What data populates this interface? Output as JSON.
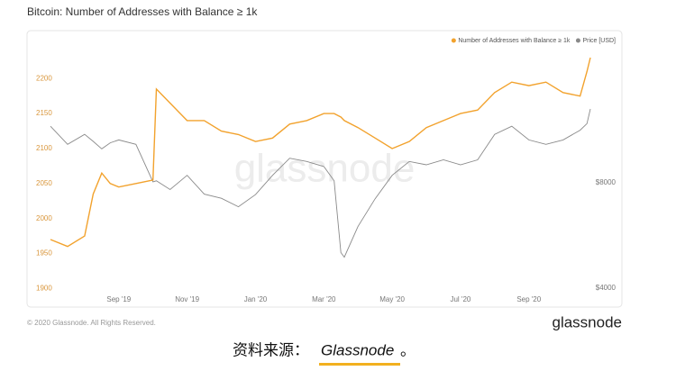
{
  "chart_data": {
    "type": "line",
    "title": "Bitcoin: Number of Addresses with Balance ≥ 1k",
    "watermark": "glassnode",
    "footer": "© 2020 Glassnode. All Rights Reserved.",
    "logo": "glassnode",
    "caption": {
      "prefix": "资料来源：",
      "source": "Glassnode",
      "suffix": "。"
    },
    "legend": "top-right",
    "grid": false,
    "x": [
      6,
      6.5,
      7,
      7.25,
      7.5,
      7.75,
      8,
      8.5,
      9,
      9.1,
      9.5,
      10,
      10.5,
      11,
      11.5,
      12,
      12.5,
      13,
      13.5,
      14,
      14.3,
      14.5,
      14.6,
      15,
      15.5,
      16,
      16.5,
      17,
      17.5,
      18,
      18.5,
      19,
      19.5,
      20,
      20.5,
      21,
      21.5,
      21.7,
      21.8
    ],
    "xlim": [
      6,
      21.8
    ],
    "xticks": [
      {
        "value": 8,
        "label": "Sep '19"
      },
      {
        "value": 10,
        "label": "Nov '19"
      },
      {
        "value": 12,
        "label": "Jan '20"
      },
      {
        "value": 14,
        "label": "Mar '20"
      },
      {
        "value": 16,
        "label": "May '20"
      },
      {
        "value": 18,
        "label": "Jul '20"
      },
      {
        "value": 20,
        "label": "Sep '20"
      }
    ],
    "ylim": [
      1894,
      2248
    ],
    "yticks": [
      1900,
      1950,
      2000,
      2050,
      2100,
      2150,
      2200
    ],
    "y2lim": [
      3880,
      19800
    ],
    "y2log": true,
    "y2ticks": [
      {
        "value": 4000,
        "label": "$4000"
      },
      {
        "value": 8000,
        "label": "$8000"
      }
    ],
    "series": [
      {
        "name": "Number of Addresses with Balance ≥ 1k",
        "color": "#f2a22d",
        "values": [
          1970,
          1960,
          1975,
          2035,
          2065,
          2050,
          2045,
          2050,
          2055,
          2185,
          2165,
          2140,
          2140,
          2125,
          2120,
          2110,
          2115,
          2135,
          2140,
          2150,
          2150,
          2145,
          2140,
          2130,
          2115,
          2100,
          2110,
          2130,
          2140,
          2150,
          2155,
          2180,
          2195,
          2190,
          2195,
          2180,
          2175,
          2210,
          2230
        ]
      },
      {
        "name": "Price [USD]",
        "color": "#8a8a8a",
        "axis": "y2",
        "values": [
          11600,
          10300,
          11000,
          10500,
          10000,
          10400,
          10600,
          10300,
          8050,
          8100,
          7650,
          8400,
          7420,
          7220,
          6830,
          7400,
          8400,
          9400,
          9200,
          8900,
          8100,
          5050,
          4900,
          6000,
          7200,
          8400,
          9200,
          9000,
          9300,
          9000,
          9300,
          11000,
          11600,
          10600,
          10300,
          10600,
          11300,
          11800,
          13000
        ]
      }
    ]
  }
}
